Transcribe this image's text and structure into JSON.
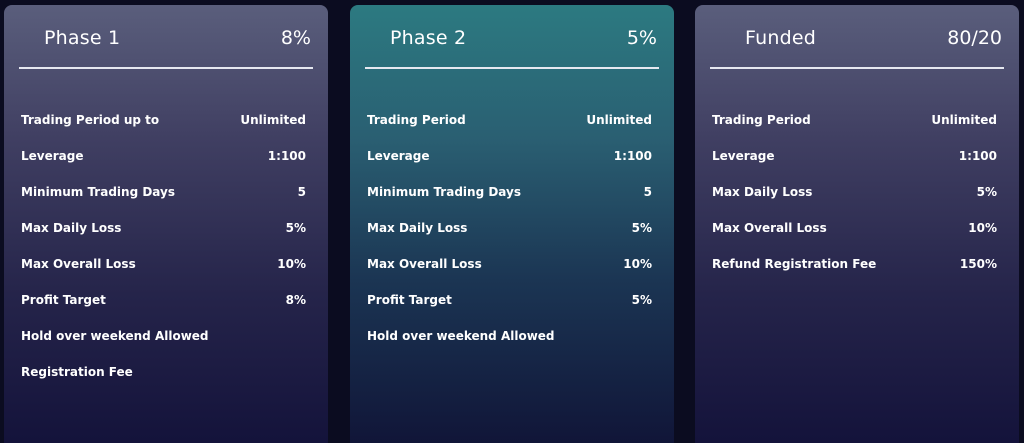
{
  "cards": [
    {
      "title": "Phase 1",
      "value": "8%",
      "rows": [
        {
          "label": "Trading Period up to",
          "value": "Unlimited"
        },
        {
          "label": "Leverage",
          "value": "1:100"
        },
        {
          "label": "Minimum Trading Days",
          "value": "5"
        },
        {
          "label": "Max Daily Loss",
          "value": "5%"
        },
        {
          "label": "Max Overall Loss",
          "value": "10%"
        },
        {
          "label": "Profit Target",
          "value": "8%"
        },
        {
          "label": "Hold over weekend Allowed",
          "value": ""
        },
        {
          "label": "Registration Fee",
          "value": ""
        }
      ]
    },
    {
      "title": "Phase 2",
      "value": "5%",
      "rows": [
        {
          "label": "Trading Period",
          "value": "Unlimited"
        },
        {
          "label": "Leverage",
          "value": "1:100"
        },
        {
          "label": "Minimum Trading Days",
          "value": "5"
        },
        {
          "label": "Max Daily Loss",
          "value": "5%"
        },
        {
          "label": "Max Overall Loss",
          "value": "10%"
        },
        {
          "label": "Profit Target",
          "value": "5%"
        },
        {
          "label": "Hold over weekend Allowed",
          "value": ""
        }
      ]
    },
    {
      "title": "Funded",
      "value": "80/20",
      "rows": [
        {
          "label": "Trading Period",
          "value": "Unlimited"
        },
        {
          "label": "Leverage",
          "value": "1:100"
        },
        {
          "label": "Max Daily Loss",
          "value": "5%"
        },
        {
          "label": "Max Overall Loss",
          "value": "10%"
        },
        {
          "label": "Refund Registration Fee",
          "value": "150%"
        }
      ]
    }
  ],
  "colors": {
    "page_background": "#0b0c20",
    "card_gray_top": "#5a5e7c",
    "card_teal_top": "#2c7a81",
    "card_bottom": "#13123a",
    "text": "#ffffff",
    "divider": "#e6e8f0"
  }
}
